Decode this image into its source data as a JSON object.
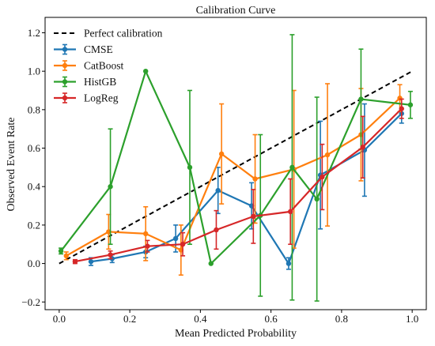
{
  "chart_data": {
    "type": "line",
    "title": "Calibration Curve",
    "xlabel": "Mean Predicted Probability",
    "ylabel": "Observed Event Rate",
    "xlim": [
      -0.04,
      1.04
    ],
    "ylim": [
      -0.24,
      1.28
    ],
    "xticks": [
      0.0,
      0.2,
      0.4,
      0.6,
      0.8,
      1.0
    ],
    "xtick_labels": [
      "0.0",
      "0.2",
      "0.4",
      "0.6",
      "0.8",
      "1.0"
    ],
    "yticks": [
      -0.2,
      0.0,
      0.2,
      0.4,
      0.6,
      0.8,
      1.0,
      1.2
    ],
    "ytick_labels": [
      "−0.2",
      "0.0",
      "0.2",
      "0.4",
      "0.6",
      "0.8",
      "1.0",
      "1.2"
    ],
    "grid": false,
    "legend_position": "top-left",
    "reference_line": {
      "name": "Perfect calibration",
      "x": [
        0,
        1
      ],
      "y": [
        0,
        1
      ],
      "color": "#000000",
      "style": "dashed"
    },
    "series": [
      {
        "name": "CMSE",
        "color": "#1f77b4",
        "x": [
          0.09,
          0.15,
          0.245,
          0.33,
          0.45,
          0.545,
          0.65,
          0.74,
          0.865,
          0.97
        ],
        "y": [
          0.01,
          0.025,
          0.06,
          0.13,
          0.38,
          0.3,
          0.0,
          0.46,
          0.59,
          0.78
        ],
        "err": [
          0.02,
          0.02,
          0.03,
          0.07,
          0.12,
          0.12,
          0.03,
          0.28,
          0.24,
          0.05
        ]
      },
      {
        "name": "CatBoost",
        "color": "#ff7f0e",
        "x": [
          0.02,
          0.14,
          0.245,
          0.345,
          0.46,
          0.555,
          0.665,
          0.76,
          0.855,
          0.965
        ],
        "y": [
          0.04,
          0.165,
          0.155,
          0.07,
          0.57,
          0.44,
          0.49,
          0.565,
          0.67,
          0.86
        ],
        "err": [
          0.02,
          0.09,
          0.14,
          0.13,
          0.26,
          0.23,
          0.41,
          0.37,
          0.24,
          0.07
        ]
      },
      {
        "name": "HistGB",
        "color": "#2ca02c",
        "x": [
          0.005,
          0.145,
          0.245,
          0.37,
          0.43,
          0.57,
          0.66,
          0.73,
          0.855,
          0.995
        ],
        "y": [
          0.065,
          0.4,
          1.0,
          0.5,
          0.0,
          0.25,
          0.5,
          0.335,
          0.855,
          0.825
        ],
        "err": [
          0.015,
          0.3,
          0.0,
          0.4,
          0.0,
          0.42,
          0.69,
          0.53,
          0.26,
          0.07
        ]
      },
      {
        "name": "LogReg",
        "color": "#d62728",
        "x": [
          0.045,
          0.145,
          0.25,
          0.35,
          0.445,
          0.55,
          0.655,
          0.745,
          0.86,
          0.97
        ],
        "y": [
          0.01,
          0.045,
          0.09,
          0.1,
          0.175,
          0.245,
          0.27,
          0.45,
          0.605,
          0.805
        ],
        "err": [
          0.01,
          0.02,
          0.03,
          0.06,
          0.1,
          0.14,
          0.17,
          0.17,
          0.16,
          0.05
        ]
      }
    ]
  }
}
